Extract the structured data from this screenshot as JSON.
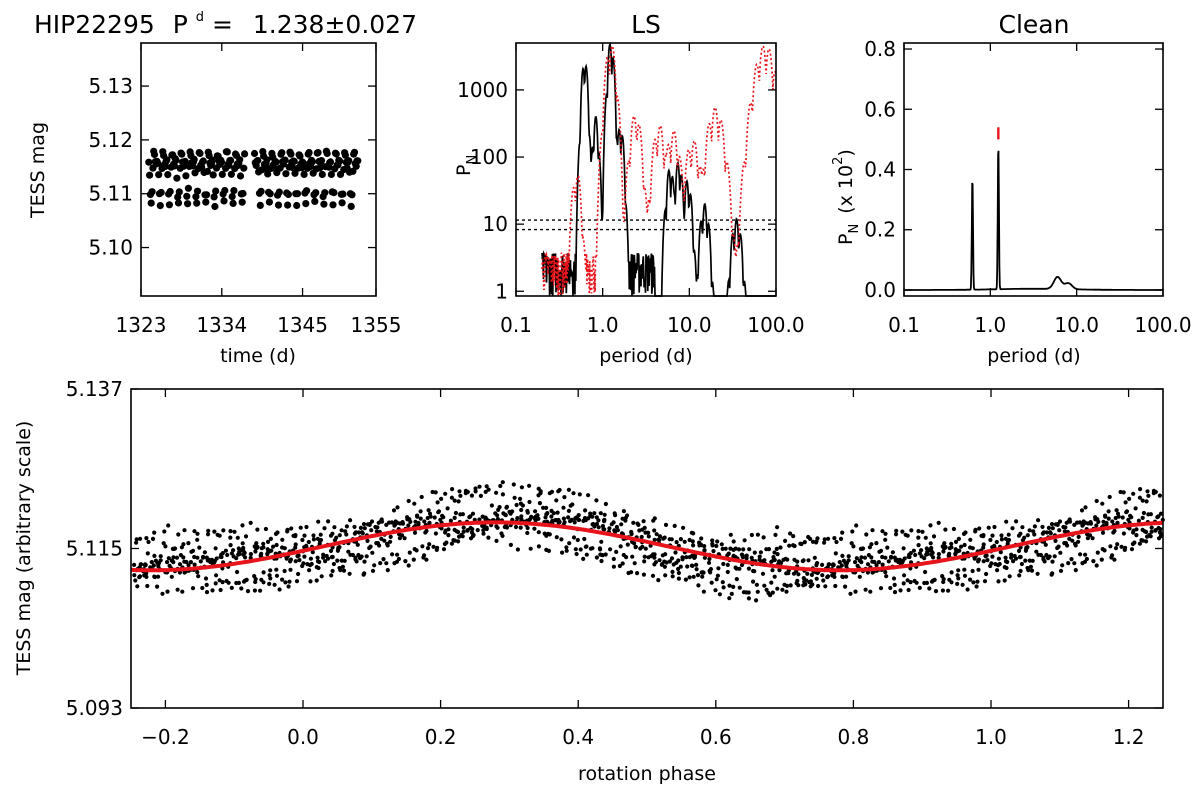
{
  "header": {
    "star": "HIP22295",
    "period_symbol": "P",
    "period_superscript": "d",
    "period_eq": "=",
    "period_value": "1.238±0.027"
  },
  "colors": {
    "data": "#000000",
    "fit": "#e8141c",
    "ls_window": "#e8141c"
  },
  "chart_data": [
    {
      "id": "lightcurve",
      "type": "scatter",
      "title": "",
      "xlabel": "time (d)",
      "ylabel": "TESS mag",
      "xlim": [
        1323,
        1355
      ],
      "ylim": [
        5.138,
        5.091
      ],
      "xticks": [
        1323,
        1334,
        1345,
        1355
      ],
      "xtick_labels": [
        "1323",
        "1334",
        "1345",
        "1355"
      ],
      "yticks": [
        5.1,
        5.11,
        5.12,
        5.13
      ],
      "ytick_labels": [
        "5.10",
        "5.11",
        "5.12",
        "5.13"
      ],
      "segments": [
        [
          1324.0,
          1337.2
        ],
        [
          1338.4,
          1352.6
        ]
      ],
      "series": [
        {
          "name": "TESS photometry",
          "color": "#000000",
          "center": 5.114,
          "semi_amplitude": 0.006,
          "period_d": 1.238
        }
      ]
    },
    {
      "id": "ls",
      "type": "line",
      "title": "LS",
      "xlabel": "period (d)",
      "ylabel": "P",
      "ylabel_sub": "N",
      "xscale": "log",
      "yscale": "log",
      "xlim": [
        0.1,
        100.0
      ],
      "ylim": [
        0.85,
        5000
      ],
      "xticks": [
        0.1,
        1.0,
        10.0,
        100.0
      ],
      "xtick_labels": [
        "0.1",
        "1.0",
        "10.0",
        "100.0"
      ],
      "yticks": [
        1,
        10,
        100,
        1000
      ],
      "ytick_labels": [
        "1",
        "10",
        "100",
        "1000"
      ],
      "thresholds": [
        8.3,
        11.5
      ],
      "series": [
        {
          "name": "periodogram",
          "color": "#000000",
          "peaks": [
            [
              0.62,
              2900
            ],
            [
              1.24,
              5200
            ],
            [
              0.83,
              400
            ],
            [
              1.6,
              300
            ],
            [
              6.0,
              70
            ],
            [
              7.5,
              85
            ],
            [
              9.5,
              45
            ],
            [
              15.0,
              20
            ],
            [
              35.0,
              12
            ]
          ]
        },
        {
          "name": "window function",
          "color": "#e8141c",
          "style": "dotted",
          "peaks": [
            [
              0.5,
              60
            ],
            [
              1.24,
              5000
            ],
            [
              2.4,
              450
            ],
            [
              4.5,
              300
            ],
            [
              6.5,
              250
            ],
            [
              11.0,
              180
            ],
            [
              20.0,
              550
            ],
            [
              75.0,
              4700
            ]
          ]
        }
      ]
    },
    {
      "id": "clean",
      "type": "line",
      "title": "Clean",
      "xlabel": "period (d)",
      "ylabel": "P",
      "ylabel_sub": "N",
      "ylabel_scale": "(x 10",
      "ylabel_scale_exp": "2",
      "ylabel_scale_close": ")",
      "xscale": "log",
      "xlim": [
        0.1,
        100.0
      ],
      "ylim": [
        -0.02,
        0.82
      ],
      "xticks": [
        0.1,
        1.0,
        10.0,
        100.0
      ],
      "xtick_labels": [
        "0.1",
        "1.0",
        "10.0",
        "100.0"
      ],
      "yticks": [
        0.0,
        0.2,
        0.4,
        0.6,
        0.8
      ],
      "ytick_labels": [
        "0.0",
        "0.2",
        "0.4",
        "0.6",
        "0.8"
      ],
      "series": [
        {
          "name": "clean spectrum",
          "color": "#000000",
          "peaks": [
            [
              0.62,
              0.38
            ],
            [
              1.238,
              0.49
            ],
            [
              6.0,
              0.04
            ],
            [
              8.0,
              0.02
            ]
          ]
        },
        {
          "name": "peak marker",
          "color": "#e8141c",
          "peaks": [
            [
              1.238,
              0.54
            ]
          ]
        }
      ]
    },
    {
      "id": "phased",
      "type": "scatter",
      "xlabel": "rotation phase",
      "ylabel": "TESS mag (arbitrary scale)",
      "xlim": [
        -0.25,
        1.25
      ],
      "ylim": [
        5.137,
        5.093
      ],
      "xticks": [
        -0.2,
        0.0,
        0.2,
        0.4,
        0.6,
        0.8,
        1.0,
        1.2
      ],
      "xtick_labels": [
        "−0.2",
        "0.0",
        "0.2",
        "0.4",
        "0.6",
        "0.8",
        "1.0",
        "1.2"
      ],
      "yticks": [
        5.093,
        5.115,
        5.137
      ],
      "ytick_labels": [
        "5.093",
        "5.115",
        "5.137"
      ],
      "fit": {
        "name": "sinusoidal fit",
        "color": "#e8141c",
        "mean": 5.1153,
        "amplitude": 0.0033,
        "max_brightness_phase": 0.78
      },
      "series": [
        {
          "name": "phased photometry",
          "color": "#000000"
        }
      ]
    }
  ]
}
